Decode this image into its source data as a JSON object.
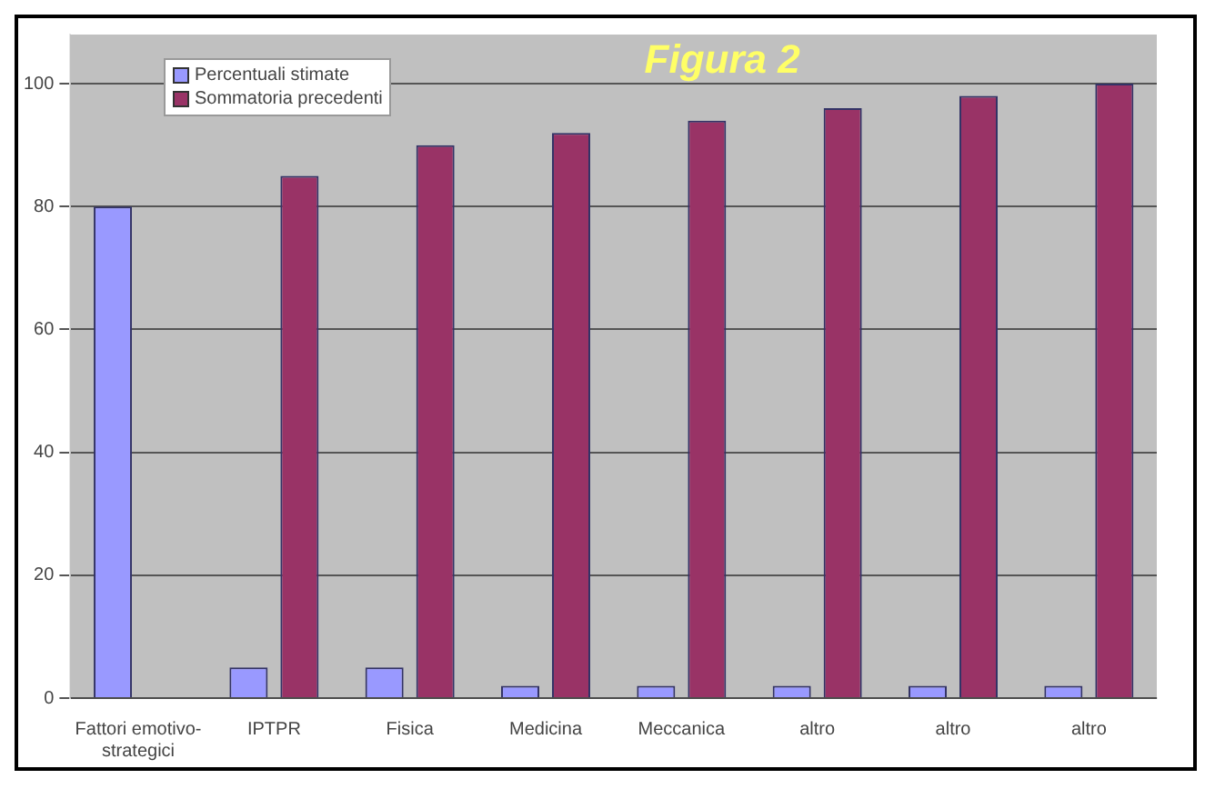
{
  "chart_data": {
    "type": "bar",
    "title": "Figura 2",
    "categories": [
      "Fattori emotivo-strategici",
      "IPTPR",
      "Fisica",
      "Medicina",
      "Meccanica",
      "altro",
      "altro",
      "altro"
    ],
    "series": [
      {
        "name": "Percentuali stimate",
        "color": "#9999ff",
        "values": [
          80,
          5,
          5,
          2,
          2,
          2,
          2,
          2
        ]
      },
      {
        "name": "Sommatoria precedenti",
        "color": "#993366",
        "values": [
          null,
          85,
          90,
          92,
          94,
          96,
          98,
          100
        ]
      }
    ],
    "ylim": [
      0,
      108
    ],
    "yticks": [
      0,
      20,
      40,
      60,
      80,
      100
    ],
    "grid": "y",
    "legend": "top left"
  }
}
